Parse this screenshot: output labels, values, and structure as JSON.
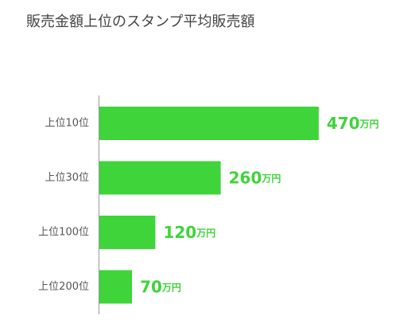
{
  "chart_data": {
    "type": "bar",
    "orientation": "horizontal",
    "title": "販売金額上位のスタンプ平均販売額",
    "categories": [
      "上位10位",
      "上位30位",
      "上位100位",
      "上位200位"
    ],
    "values": [
      470,
      260,
      120,
      70
    ],
    "value_labels": [
      "470万円",
      "260万円",
      "120万円",
      "70万円"
    ],
    "color": "#3ed43a"
  }
}
